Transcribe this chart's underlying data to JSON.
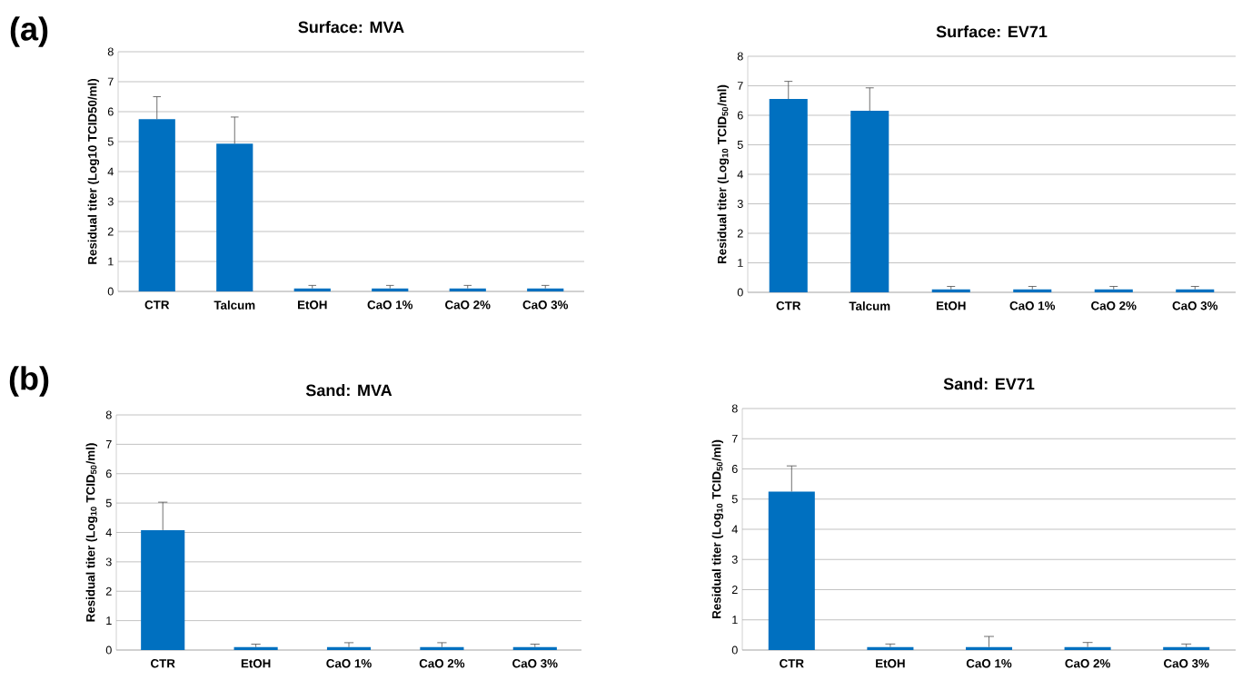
{
  "chart_data": [
    {
      "type": "bar",
      "title": "Surface: MVA",
      "ylabel": "Residual titer (Log10 TCID50/ml)",
      "categories": [
        "CTR",
        "Talcum",
        "EtOH",
        "CaO 1%",
        "CaO 2%",
        "CaO 3%"
      ],
      "values": [
        5.75,
        4.93,
        0.1,
        0.1,
        0.1,
        0.1
      ],
      "errors": [
        [
          5.75,
          6.5
        ],
        [
          4.93,
          5.82
        ],
        [
          0.1,
          0.2
        ],
        [
          0.1,
          0.2
        ],
        [
          0.1,
          0.2
        ],
        [
          0.1,
          0.2
        ]
      ],
      "color": "#0070c0",
      "ylim": [
        0,
        8
      ],
      "yticks": [
        0,
        1,
        2,
        3,
        4,
        5,
        6,
        7,
        8
      ],
      "grid": "y",
      "annotations": [
        "(a)"
      ]
    },
    {
      "type": "bar",
      "title": "Surface: EV71",
      "ylabel": "Residual titer (Log$_{10}$ TCID$_{50}$/ml)",
      "categories": [
        "CTR",
        "Talcum",
        "EtOH",
        "CaO 1%",
        "CaO 2%",
        "CaO 3%"
      ],
      "values": [
        6.55,
        6.15,
        0.1,
        0.1,
        0.1,
        0.1
      ],
      "errors": [
        [
          6.55,
          7.15
        ],
        [
          6.15,
          6.93
        ],
        [
          0.1,
          0.2
        ],
        [
          0.1,
          0.2
        ],
        [
          0.1,
          0.2
        ],
        [
          0.1,
          0.2
        ]
      ],
      "color": "#0070c0",
      "ylim": [
        0,
        8
      ],
      "yticks": [
        0,
        1,
        2,
        3,
        4,
        5,
        6,
        7,
        8
      ],
      "grid": "y"
    },
    {
      "type": "bar",
      "title": "Sand: MVA",
      "ylabel": "Residual titer (Log$_{10}$ TCID$_{50}$/ml)",
      "categories": [
        "CTR",
        "EtOH",
        "CaO 1%",
        "CaO 2%",
        "CaO 3%"
      ],
      "values": [
        4.08,
        0.1,
        0.1,
        0.1,
        0.1
      ],
      "errors": [
        [
          4.08,
          5.03
        ],
        [
          0.1,
          0.2
        ],
        [
          0.1,
          0.25
        ],
        [
          0.1,
          0.25
        ],
        [
          0.1,
          0.2
        ]
      ],
      "color": "#0070c0",
      "ylim": [
        0,
        8
      ],
      "yticks": [
        0,
        1,
        2,
        3,
        4,
        5,
        6,
        7,
        8
      ],
      "grid": "y",
      "annotations": [
        "(b)"
      ]
    },
    {
      "type": "bar",
      "title": "Sand: EV71",
      "ylabel": "Residual titer (Log$_{10}$ TCID$_{50}$/ml)",
      "categories": [
        "CTR",
        "EtOH",
        "CaO 1%",
        "CaO 2%",
        "CaO 3%"
      ],
      "values": [
        5.25,
        0.1,
        0.1,
        0.1,
        0.1
      ],
      "errors": [
        [
          5.25,
          6.1
        ],
        [
          0.1,
          0.2
        ],
        [
          0.1,
          0.45
        ],
        [
          0.1,
          0.25
        ],
        [
          0.1,
          0.2
        ]
      ],
      "color": "#0070c0",
      "ylim": [
        0,
        8
      ],
      "yticks": [
        0,
        1,
        2,
        3,
        4,
        5,
        6,
        7,
        8
      ],
      "grid": "y"
    }
  ]
}
